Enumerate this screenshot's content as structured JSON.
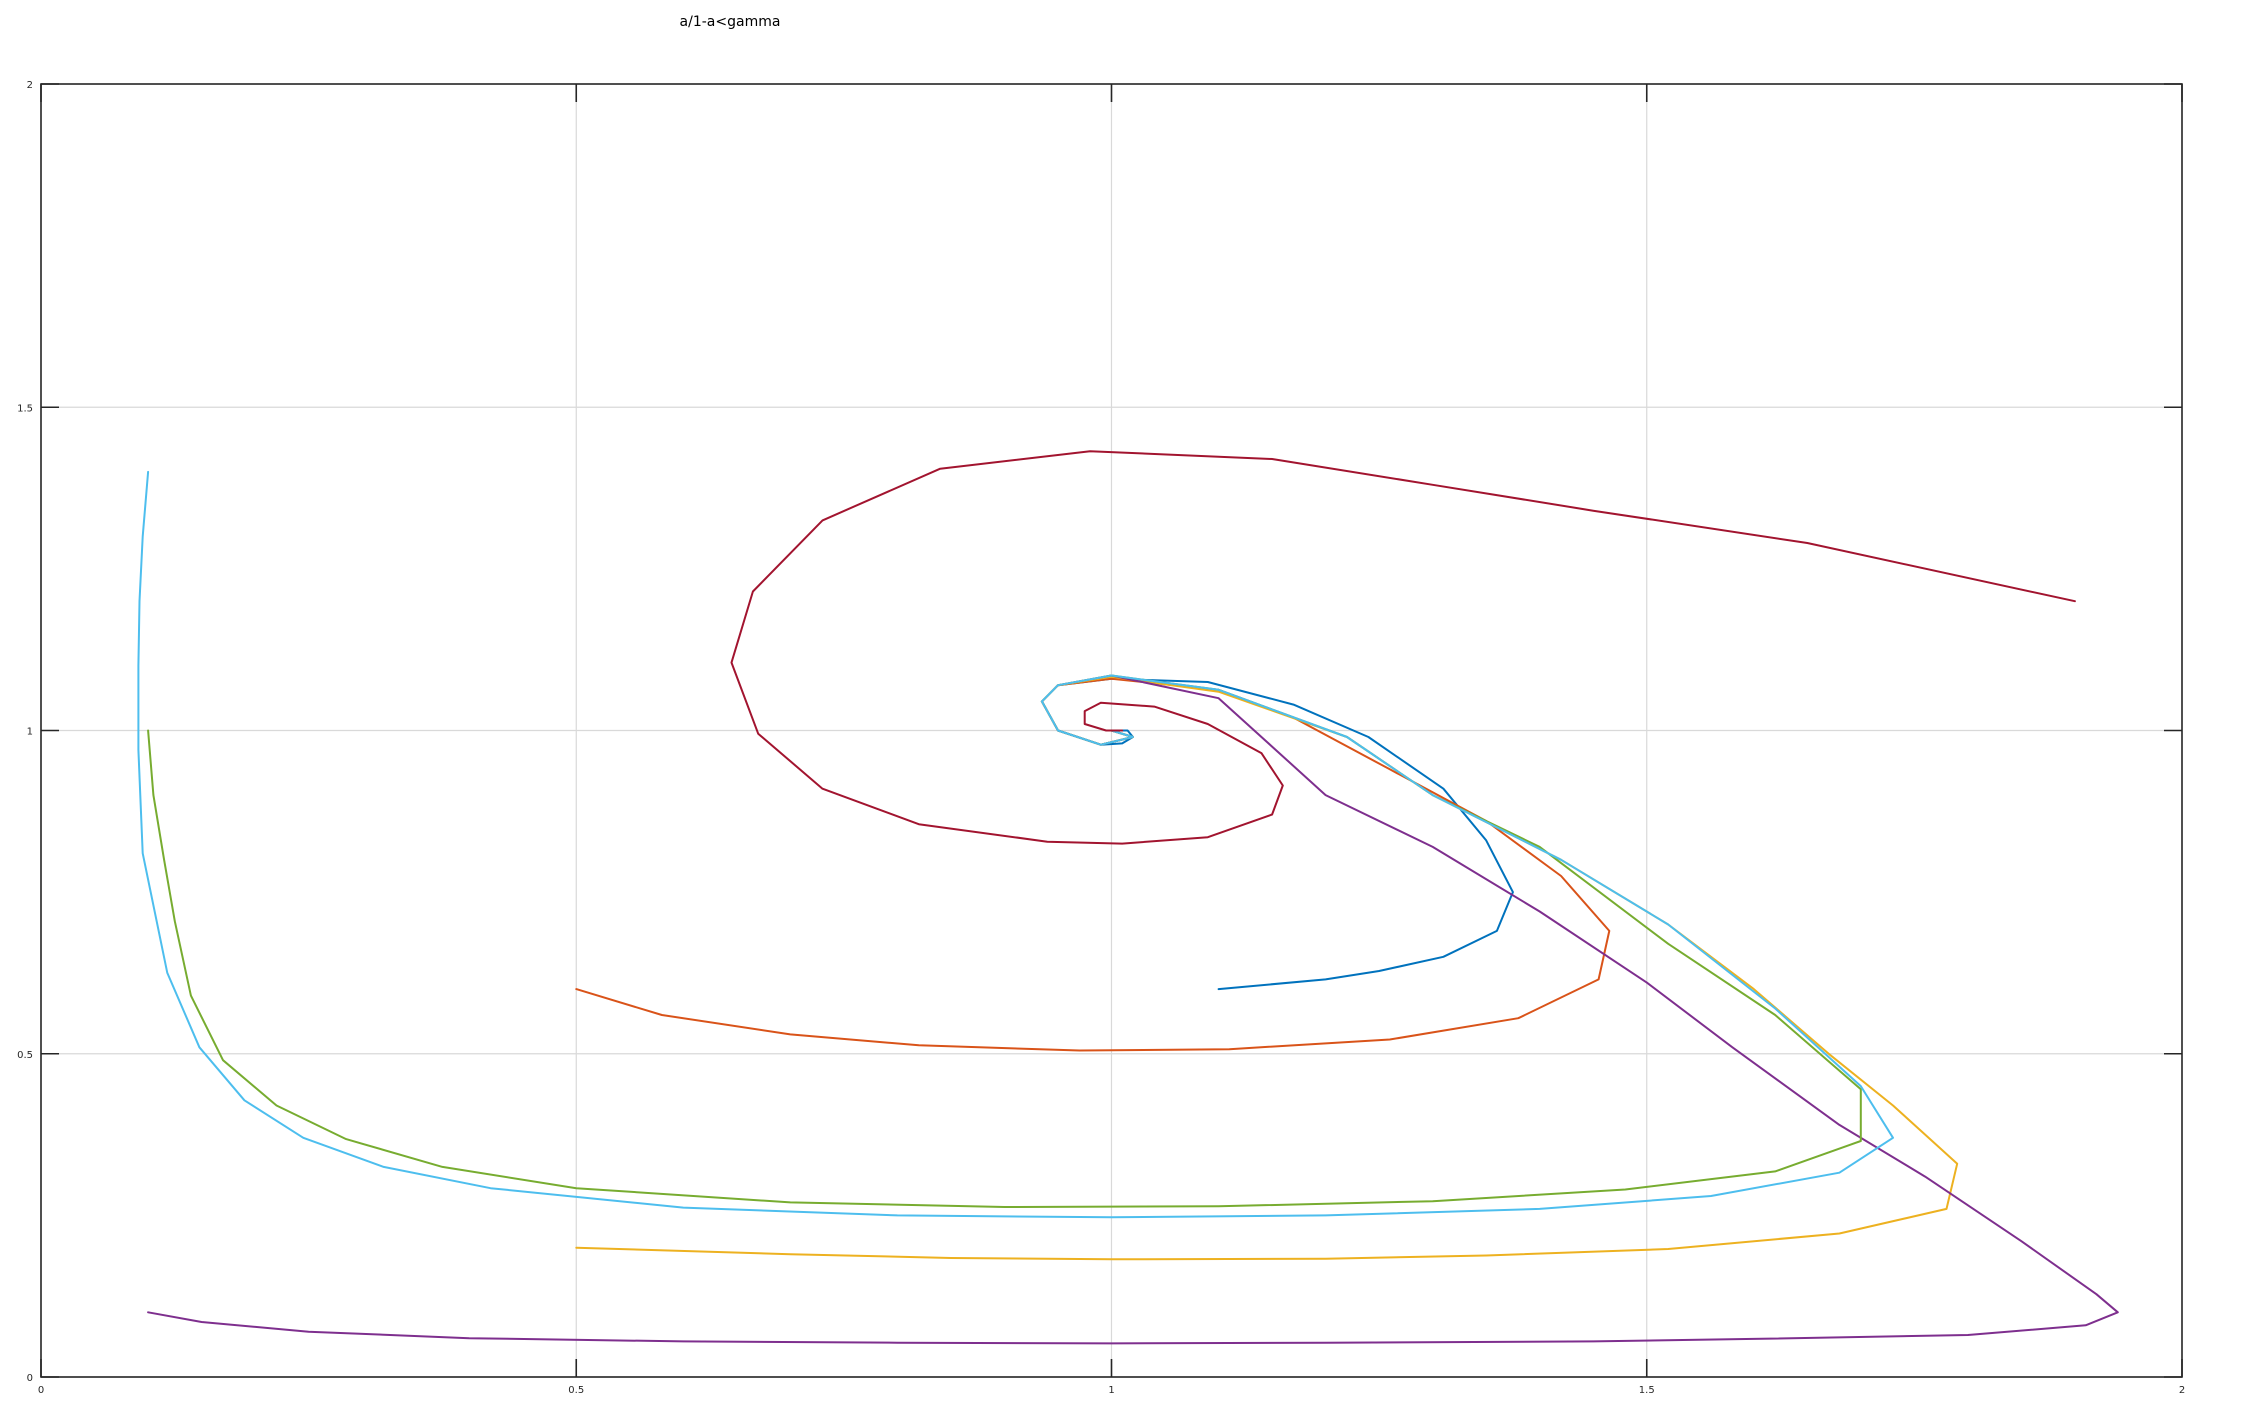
{
  "chart_data": {
    "type": "line",
    "title": "a/1-a<gamma",
    "xlabel": "",
    "ylabel": "",
    "xlim": [
      0,
      2
    ],
    "ylim": [
      0,
      2
    ],
    "xticks": [
      0,
      0.5,
      1,
      1.5,
      2
    ],
    "yticks": [
      0,
      0.5,
      1,
      1.5,
      2
    ],
    "xtick_labels": [
      "0",
      "0.5",
      "1",
      "1.5",
      "2"
    ],
    "ytick_labels": [
      "0",
      "0.5",
      "1",
      "1.5",
      "2"
    ],
    "grid": true,
    "legend": null,
    "series": [
      {
        "color": "#0072BD",
        "points": [
          [
            1.1,
            0.6
          ],
          [
            1.2,
            0.615
          ],
          [
            1.25,
            0.628
          ],
          [
            1.31,
            0.65
          ],
          [
            1.36,
            0.69
          ],
          [
            1.375,
            0.75
          ],
          [
            1.35,
            0.83
          ],
          [
            1.31,
            0.91
          ],
          [
            1.24,
            0.99
          ],
          [
            1.17,
            1.04
          ],
          [
            1.09,
            1.075
          ],
          [
            1.0,
            1.08
          ],
          [
            0.95,
            1.07
          ],
          [
            0.935,
            1.045
          ],
          [
            0.95,
            1.0
          ],
          [
            0.99,
            0.978
          ],
          [
            1.01,
            0.98
          ],
          [
            1.02,
            0.99
          ],
          [
            1.015,
            1.0
          ],
          [
            1.0,
            1.0
          ]
        ]
      },
      {
        "color": "#D95319",
        "points": [
          [
            0.5,
            0.6
          ],
          [
            0.58,
            0.56
          ],
          [
            0.7,
            0.53
          ],
          [
            0.82,
            0.513
          ],
          [
            0.97,
            0.505
          ],
          [
            1.11,
            0.507
          ],
          [
            1.26,
            0.522
          ],
          [
            1.38,
            0.555
          ],
          [
            1.455,
            0.615
          ],
          [
            1.465,
            0.69
          ],
          [
            1.42,
            0.775
          ],
          [
            1.35,
            0.86
          ],
          [
            1.26,
            0.94
          ],
          [
            1.17,
            1.02
          ],
          [
            1.1,
            1.063
          ],
          [
            1.0,
            1.08
          ],
          [
            0.95,
            1.07
          ],
          [
            0.935,
            1.045
          ],
          [
            0.95,
            1.0
          ],
          [
            0.99,
            0.978
          ],
          [
            1.02,
            0.99
          ],
          [
            1.0,
            1.0
          ]
        ]
      },
      {
        "color": "#EDB120",
        "points": [
          [
            0.5,
            0.2
          ],
          [
            0.7,
            0.19
          ],
          [
            0.85,
            0.184
          ],
          [
            1.0,
            0.182
          ],
          [
            1.2,
            0.183
          ],
          [
            1.35,
            0.188
          ],
          [
            1.52,
            0.198
          ],
          [
            1.68,
            0.222
          ],
          [
            1.78,
            0.26
          ],
          [
            1.79,
            0.33
          ],
          [
            1.73,
            0.42
          ],
          [
            1.67,
            0.5
          ],
          [
            1.6,
            0.6
          ],
          [
            1.52,
            0.7
          ],
          [
            1.42,
            0.8
          ],
          [
            1.3,
            0.9
          ],
          [
            1.22,
            0.99
          ],
          [
            1.1,
            1.06
          ],
          [
            1.0,
            1.083
          ],
          [
            0.95,
            1.07
          ],
          [
            0.935,
            1.045
          ],
          [
            0.95,
            1.0
          ],
          [
            0.99,
            0.978
          ],
          [
            1.02,
            0.99
          ],
          [
            1.0,
            1.0
          ]
        ]
      },
      {
        "color": "#7E2F8E",
        "points": [
          [
            0.1,
            0.1
          ],
          [
            0.15,
            0.085
          ],
          [
            0.25,
            0.07
          ],
          [
            0.4,
            0.06
          ],
          [
            0.6,
            0.055
          ],
          [
            0.8,
            0.053
          ],
          [
            1.0,
            0.052
          ],
          [
            1.2,
            0.053
          ],
          [
            1.45,
            0.055
          ],
          [
            1.6,
            0.059
          ],
          [
            1.8,
            0.065
          ],
          [
            1.91,
            0.08
          ],
          [
            1.94,
            0.1
          ],
          [
            1.92,
            0.128
          ],
          [
            1.85,
            0.21
          ],
          [
            1.76,
            0.31
          ],
          [
            1.68,
            0.39
          ],
          [
            1.58,
            0.51
          ],
          [
            1.5,
            0.61
          ],
          [
            1.4,
            0.72
          ],
          [
            1.3,
            0.82
          ],
          [
            1.2,
            0.9
          ],
          [
            1.1,
            1.05
          ],
          [
            1.0,
            1.085
          ],
          [
            0.95,
            1.07
          ],
          [
            0.935,
            1.045
          ],
          [
            0.95,
            1.0
          ],
          [
            0.99,
            0.978
          ],
          [
            1.02,
            0.99
          ],
          [
            1.0,
            1.0
          ]
        ]
      },
      {
        "color": "#77AC30",
        "points": [
          [
            0.1,
            1.0
          ],
          [
            0.105,
            0.9
          ],
          [
            0.115,
            0.8
          ],
          [
            0.125,
            0.705
          ],
          [
            0.14,
            0.59
          ],
          [
            0.17,
            0.49
          ],
          [
            0.22,
            0.42
          ],
          [
            0.285,
            0.368
          ],
          [
            0.375,
            0.325
          ],
          [
            0.5,
            0.292
          ],
          [
            0.7,
            0.27
          ],
          [
            0.9,
            0.263
          ],
          [
            1.1,
            0.264
          ],
          [
            1.3,
            0.272
          ],
          [
            1.48,
            0.29
          ],
          [
            1.62,
            0.318
          ],
          [
            1.7,
            0.365
          ],
          [
            1.7,
            0.445
          ],
          [
            1.62,
            0.56
          ],
          [
            1.52,
            0.67
          ],
          [
            1.4,
            0.82
          ],
          [
            1.3,
            0.9
          ],
          [
            1.22,
            0.99
          ],
          [
            1.1,
            1.063
          ],
          [
            1.0,
            1.085
          ],
          [
            0.95,
            1.07
          ],
          [
            0.935,
            1.045
          ],
          [
            0.95,
            1.0
          ],
          [
            0.99,
            0.978
          ],
          [
            1.02,
            0.99
          ],
          [
            1.0,
            1.0
          ]
        ]
      },
      {
        "color": "#4DBEEE",
        "points": [
          [
            0.1,
            1.4
          ],
          [
            0.095,
            1.3
          ],
          [
            0.092,
            1.2
          ],
          [
            0.091,
            1.1
          ],
          [
            0.091,
            0.97
          ],
          [
            0.095,
            0.81
          ],
          [
            0.118,
            0.625
          ],
          [
            0.148,
            0.51
          ],
          [
            0.19,
            0.428
          ],
          [
            0.245,
            0.37
          ],
          [
            0.32,
            0.325
          ],
          [
            0.42,
            0.292
          ],
          [
            0.6,
            0.262
          ],
          [
            0.8,
            0.25
          ],
          [
            1.0,
            0.247
          ],
          [
            1.2,
            0.25
          ],
          [
            1.4,
            0.26
          ],
          [
            1.56,
            0.28
          ],
          [
            1.68,
            0.316
          ],
          [
            1.73,
            0.37
          ],
          [
            1.7,
            0.45
          ],
          [
            1.62,
            0.57
          ],
          [
            1.52,
            0.7
          ],
          [
            1.42,
            0.8
          ],
          [
            1.3,
            0.9
          ],
          [
            1.22,
            0.99
          ],
          [
            1.1,
            1.063
          ],
          [
            1.0,
            1.085
          ],
          [
            0.95,
            1.07
          ],
          [
            0.935,
            1.045
          ],
          [
            0.95,
            1.0
          ],
          [
            0.99,
            0.978
          ],
          [
            1.02,
            0.99
          ],
          [
            1.0,
            1.0
          ]
        ]
      },
      {
        "color": "#A2142F",
        "points": [
          [
            1.9,
            1.2
          ],
          [
            1.65,
            1.29
          ],
          [
            1.45,
            1.34
          ],
          [
            1.3,
            1.38
          ],
          [
            1.15,
            1.42
          ],
          [
            0.98,
            1.432
          ],
          [
            0.84,
            1.405
          ],
          [
            0.73,
            1.325
          ],
          [
            0.665,
            1.215
          ],
          [
            0.645,
            1.105
          ],
          [
            0.67,
            0.995
          ],
          [
            0.73,
            0.91
          ],
          [
            0.82,
            0.855
          ],
          [
            0.94,
            0.828
          ],
          [
            1.01,
            0.825
          ],
          [
            1.09,
            0.835
          ],
          [
            1.15,
            0.87
          ],
          [
            1.16,
            0.915
          ],
          [
            1.14,
            0.965
          ],
          [
            1.09,
            1.01
          ],
          [
            1.04,
            1.037
          ],
          [
            0.99,
            1.043
          ],
          [
            0.975,
            1.03
          ],
          [
            0.975,
            1.01
          ],
          [
            0.995,
            1.0
          ],
          [
            1.01,
            1.0
          ],
          [
            1.0,
            1.0
          ]
        ]
      }
    ]
  }
}
